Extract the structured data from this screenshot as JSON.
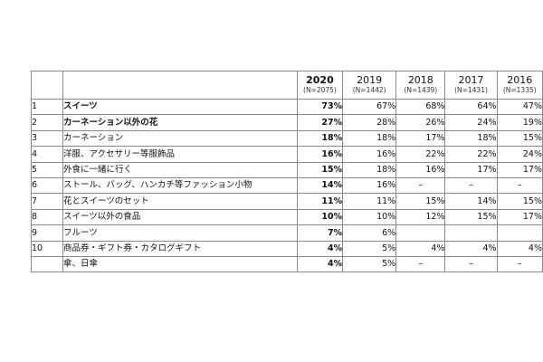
{
  "table": {
    "columns": [
      {
        "year": "2020",
        "n": "(N=2075)",
        "bold": true
      },
      {
        "year": "2019",
        "n": "(N=1442)",
        "bold": false
      },
      {
        "year": "2018",
        "n": "(N=1439)",
        "bold": false
      },
      {
        "year": "2017",
        "n": "(N=1431)",
        "bold": false
      },
      {
        "year": "2016",
        "n": "(N=1335)",
        "bold": false
      }
    ],
    "rows": [
      {
        "rank": "1",
        "item": "スイーツ",
        "bold": true,
        "values": [
          "73%",
          "67%",
          "68%",
          "64%",
          "47%"
        ]
      },
      {
        "rank": "2",
        "item": "カーネーション以外の花",
        "bold": true,
        "values": [
          "27%",
          "28%",
          "26%",
          "24%",
          "19%"
        ]
      },
      {
        "rank": "3",
        "item": "カーネーション",
        "bold": false,
        "values": [
          "18%",
          "18%",
          "17%",
          "18%",
          "15%"
        ]
      },
      {
        "rank": "4",
        "item": "洋服、アクセサリー等服飾品",
        "bold": false,
        "values": [
          "16%",
          "16%",
          "22%",
          "22%",
          "24%"
        ]
      },
      {
        "rank": "5",
        "item": "外食に一緒に行く",
        "bold": false,
        "values": [
          "15%",
          "18%",
          "16%",
          "17%",
          "17%"
        ]
      },
      {
        "rank": "6",
        "item": "ストール、バッグ、ハンカチ等ファッション小物",
        "bold": false,
        "values": [
          "14%",
          "16%",
          "–",
          "–",
          "–"
        ]
      },
      {
        "rank": "7",
        "item": "花とスイーツのセット",
        "bold": false,
        "values": [
          "11%",
          "11%",
          "15%",
          "14%",
          "15%"
        ]
      },
      {
        "rank": "8",
        "item": "スイーツ以外の食品",
        "bold": false,
        "values": [
          "10%",
          "10%",
          "12%",
          "15%",
          "17%"
        ]
      },
      {
        "rank": "9",
        "item": "フルーツ",
        "bold": false,
        "values": [
          "7%",
          "6%",
          "",
          "",
          ""
        ]
      },
      {
        "rank": "10",
        "item": "商品券・ギフト券・カタログギフト",
        "bold": false,
        "values": [
          "4%",
          "5%",
          "4%",
          "4%",
          "4%"
        ]
      },
      {
        "rank": "",
        "item": "傘、日傘",
        "bold": false,
        "values": [
          "4%",
          "5%",
          "–",
          "–",
          "–"
        ]
      }
    ]
  }
}
